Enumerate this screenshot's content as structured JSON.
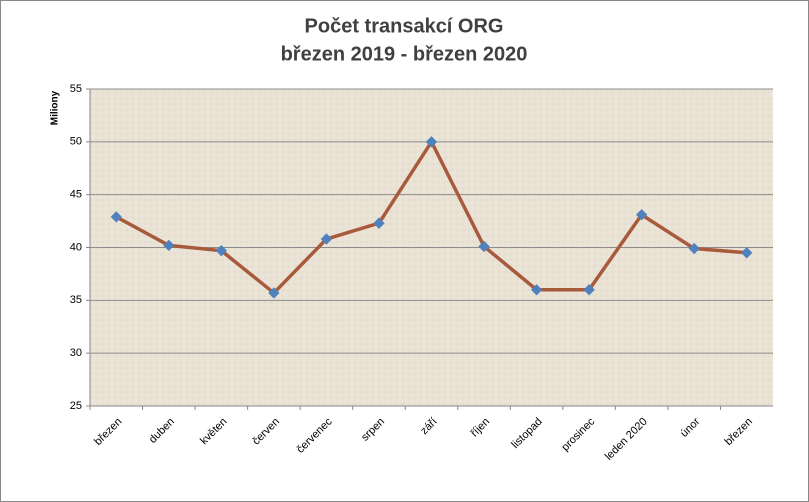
{
  "chart_data": {
    "type": "line",
    "title": "Počet transakcí ORG",
    "subtitle": "březen  2019 - březen 2020",
    "y_label": "Miliony",
    "categories": [
      "březen",
      "duben",
      "květen",
      "červen",
      "červenec",
      "srpen",
      "září",
      "říjen",
      "listopad",
      "prosinec",
      "leden 2020",
      "únor",
      "březen"
    ],
    "series": [
      {
        "name": "Počet transakcí",
        "color": "#a85a3c",
        "marker_color": "#4f81bd",
        "values": [
          42.9,
          40.2,
          39.7,
          35.7,
          40.8,
          42.3,
          50.0,
          40.1,
          36.0,
          36.0,
          43.1,
          39.9,
          39.5
        ]
      }
    ],
    "ylim": [
      25,
      55
    ],
    "yticks": [
      25,
      30,
      35,
      40,
      45,
      50,
      55
    ],
    "grid": true
  }
}
